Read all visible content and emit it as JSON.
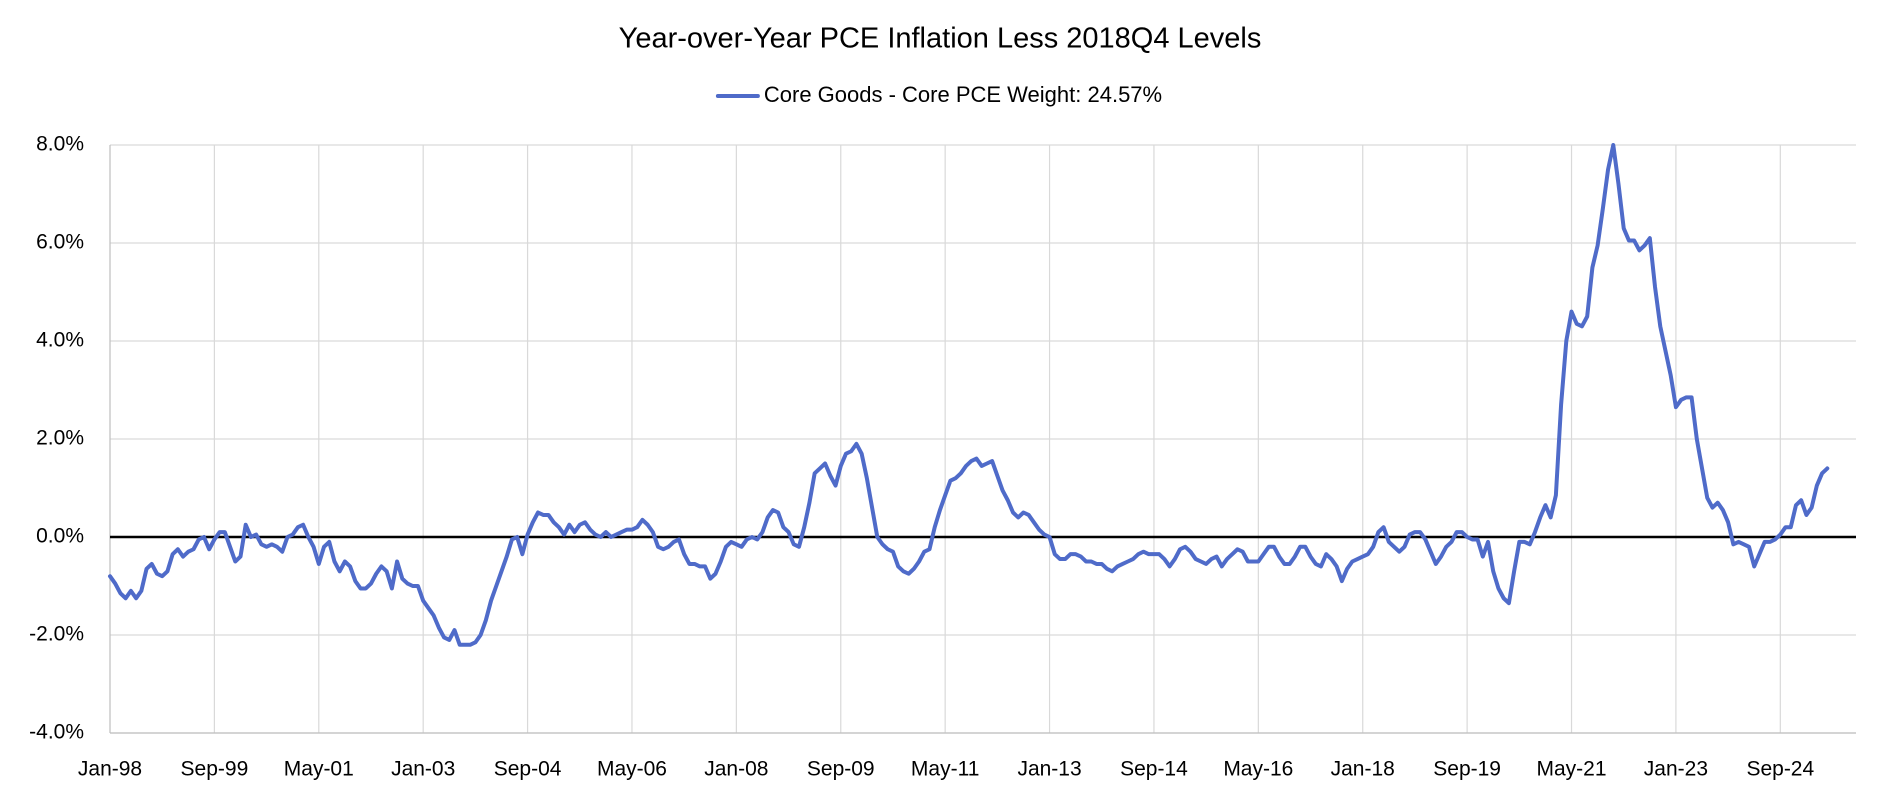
{
  "chart_data": {
    "type": "line",
    "title": "Year-over-Year PCE Inflation Less 2018Q4 Levels",
    "categories": [
      "Jan-98",
      null,
      null,
      null,
      null,
      null,
      null,
      null,
      null,
      null,
      null,
      null,
      null,
      null,
      null,
      null,
      null,
      null,
      null,
      null,
      "Sep-99",
      null,
      null,
      null,
      null,
      null,
      null,
      null,
      null,
      null,
      null,
      null,
      null,
      null,
      null,
      null,
      null,
      null,
      null,
      null,
      "May-01",
      null,
      null,
      null,
      null,
      null,
      null,
      null,
      null,
      null,
      null,
      null,
      null,
      null,
      null,
      null,
      null,
      null,
      null,
      null,
      "Jan-03",
      null,
      null,
      null,
      null,
      null,
      null,
      null,
      null,
      null,
      null,
      null,
      null,
      null,
      null,
      null,
      null,
      null,
      null,
      null,
      "Sep-04",
      null,
      null,
      null,
      null,
      null,
      null,
      null,
      null,
      null,
      null,
      null,
      null,
      null,
      null,
      null,
      null,
      null,
      null,
      null,
      "May-06",
      null,
      null,
      null,
      null,
      null,
      null,
      null,
      null,
      null,
      null,
      null,
      null,
      null,
      null,
      null,
      null,
      null,
      null,
      null,
      "Jan-08",
      null,
      null,
      null,
      null,
      null,
      null,
      null,
      null,
      null,
      null,
      null,
      null,
      null,
      null,
      null,
      null,
      null,
      null,
      null,
      "Sep-09",
      null,
      null,
      null,
      null,
      null,
      null,
      null,
      null,
      null,
      null,
      null,
      null,
      null,
      null,
      null,
      null,
      null,
      null,
      null,
      "May-11",
      null,
      null,
      null,
      null,
      null,
      null,
      null,
      null,
      null,
      null,
      null,
      null,
      null,
      null,
      null,
      null,
      null,
      null,
      null,
      "Jan-13",
      null,
      null,
      null,
      null,
      null,
      null,
      null,
      null,
      null,
      null,
      null,
      null,
      null,
      null,
      null,
      null,
      null,
      null,
      null,
      "Sep-14",
      null,
      null,
      null,
      null,
      null,
      null,
      null,
      null,
      null,
      null,
      null,
      null,
      null,
      null,
      null,
      null,
      null,
      null,
      null,
      "May-16",
      null,
      null,
      null,
      null,
      null,
      null,
      null,
      null,
      null,
      null,
      null,
      null,
      null,
      null,
      null,
      null,
      null,
      null,
      null,
      "Jan-18",
      null,
      null,
      null,
      null,
      null,
      null,
      null,
      null,
      null,
      null,
      null,
      null,
      null,
      null,
      null,
      null,
      null,
      null,
      null,
      "Sep-19",
      null,
      null,
      null,
      null,
      null,
      null,
      null,
      null,
      null,
      null,
      null,
      null,
      null,
      null,
      null,
      null,
      null,
      null,
      null,
      "May-21",
      null,
      null,
      null,
      null,
      null,
      null,
      null,
      null,
      null,
      null,
      null,
      null,
      null,
      null,
      null,
      null,
      null,
      null,
      null,
      "Jan-23",
      null,
      null,
      null,
      null,
      null,
      null,
      null,
      null,
      null,
      null,
      null,
      null,
      null,
      null,
      null,
      null,
      null,
      null,
      null,
      "Sep-24",
      null,
      null,
      null,
      null,
      null,
      null,
      null,
      null,
      null
    ],
    "series": [
      {
        "name": "Core Goods - Core PCE Weight: 24.57%",
        "color": "#4f6bc9",
        "values": [
          -0.8,
          -0.95,
          -1.15,
          -1.25,
          -1.1,
          -1.25,
          -1.1,
          -0.65,
          -0.55,
          -0.75,
          -0.8,
          -0.7,
          -0.35,
          -0.25,
          -0.4,
          -0.3,
          -0.25,
          -0.05,
          0,
          -0.25,
          -0.05,
          0.1,
          0.1,
          -0.2,
          -0.5,
          -0.4,
          0.25,
          0,
          0.05,
          -0.15,
          -0.2,
          -0.15,
          -0.2,
          -0.3,
          0,
          0.05,
          0.2,
          0.25,
          0,
          -0.2,
          -0.55,
          -0.2,
          -0.1,
          -0.5,
          -0.7,
          -0.5,
          -0.6,
          -0.9,
          -1.05,
          -1.05,
          -0.95,
          -0.75,
          -0.6,
          -0.7,
          -1.05,
          -0.5,
          -0.85,
          -0.95,
          -1.0,
          -1.0,
          -1.3,
          -1.45,
          -1.6,
          -1.85,
          -2.05,
          -2.1,
          -1.9,
          -2.2,
          -2.2,
          -2.2,
          -2.15,
          -2.0,
          -1.7,
          -1.3,
          -1.0,
          -0.7,
          -0.4,
          -0.05,
          0,
          -0.35,
          0.05,
          0.3,
          0.5,
          0.45,
          0.45,
          0.3,
          0.2,
          0.05,
          0.25,
          0.1,
          0.25,
          0.3,
          0.15,
          0.05,
          0,
          0.1,
          0,
          0.05,
          0.1,
          0.15,
          0.15,
          0.2,
          0.35,
          0.25,
          0.1,
          -0.2,
          -0.25,
          -0.2,
          -0.1,
          -0.05,
          -0.35,
          -0.55,
          -0.55,
          -0.6,
          -0.6,
          -0.85,
          -0.75,
          -0.5,
          -0.2,
          -0.1,
          -0.15,
          -0.2,
          -0.05,
          0,
          -0.05,
          0.1,
          0.4,
          0.55,
          0.5,
          0.2,
          0.1,
          -0.15,
          -0.2,
          0.2,
          0.7,
          1.3,
          1.4,
          1.5,
          1.25,
          1.05,
          1.45,
          1.7,
          1.75,
          1.9,
          1.7,
          1.2,
          0.6,
          0,
          -0.15,
          -0.25,
          -0.3,
          -0.6,
          -0.7,
          -0.75,
          -0.65,
          -0.5,
          -0.3,
          -0.25,
          0.2,
          0.55,
          0.85,
          1.15,
          1.2,
          1.3,
          1.45,
          1.55,
          1.6,
          1.45,
          1.5,
          1.55,
          1.25,
          0.95,
          0.75,
          0.5,
          0.4,
          0.5,
          0.45,
          0.3,
          0.15,
          0.05,
          0,
          -0.35,
          -0.45,
          -0.45,
          -0.35,
          -0.35,
          -0.4,
          -0.5,
          -0.5,
          -0.55,
          -0.55,
          -0.65,
          -0.7,
          -0.6,
          -0.55,
          -0.5,
          -0.45,
          -0.35,
          -0.3,
          -0.35,
          -0.35,
          -0.35,
          -0.45,
          -0.6,
          -0.45,
          -0.25,
          -0.2,
          -0.3,
          -0.45,
          -0.5,
          -0.55,
          -0.45,
          -0.4,
          -0.6,
          -0.45,
          -0.35,
          -0.25,
          -0.3,
          -0.5,
          -0.5,
          -0.5,
          -0.35,
          -0.2,
          -0.2,
          -0.4,
          -0.55,
          -0.55,
          -0.4,
          -0.2,
          -0.2,
          -0.4,
          -0.55,
          -0.6,
          -0.35,
          -0.45,
          -0.6,
          -0.9,
          -0.65,
          -0.5,
          -0.45,
          -0.4,
          -0.35,
          -0.2,
          0.1,
          0.2,
          -0.1,
          -0.2,
          -0.3,
          -0.2,
          0.05,
          0.1,
          0.1,
          -0.05,
          -0.3,
          -0.55,
          -0.4,
          -0.2,
          -0.1,
          0.1,
          0.1,
          0,
          -0.05,
          -0.05,
          -0.4,
          -0.1,
          -0.7,
          -1.05,
          -1.25,
          -1.35,
          -0.7,
          -0.1,
          -0.1,
          -0.15,
          0.1,
          0.4,
          0.65,
          0.4,
          0.85,
          2.7,
          4.0,
          4.6,
          4.35,
          4.3,
          4.5,
          5.5,
          5.95,
          6.7,
          7.5,
          8.0,
          7.2,
          6.3,
          6.05,
          6.05,
          5.85,
          5.95,
          6.1,
          5.1,
          4.3,
          3.8,
          3.3,
          2.65,
          2.8,
          2.85,
          2.85,
          2.0,
          1.4,
          0.8,
          0.6,
          0.7,
          0.55,
          0.3,
          -0.15,
          -0.1,
          -0.15,
          -0.2,
          -0.6,
          -0.35,
          -0.1,
          -0.1,
          -0.05,
          0.05,
          0.2,
          0.2,
          0.65,
          0.75,
          0.45,
          0.6,
          1.05,
          1.3,
          1.4
        ]
      }
    ],
    "ylim": [
      -4,
      8
    ],
    "yticks": [
      {
        "value": -4,
        "label": "-4.0%"
      },
      {
        "value": -2,
        "label": "-2.0%"
      },
      {
        "value": 0,
        "label": "0.0%"
      },
      {
        "value": 2,
        "label": "2.0%"
      },
      {
        "value": 4,
        "label": "4.0%"
      },
      {
        "value": 6,
        "label": "6.0%"
      },
      {
        "value": 8,
        "label": "8.0%"
      }
    ],
    "grid": true,
    "legend": "top"
  }
}
